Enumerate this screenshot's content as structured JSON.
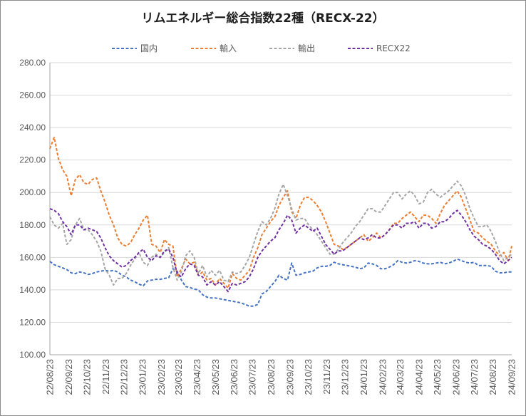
{
  "chart_data": {
    "type": "line",
    "title": "リムエネルギー総合指数22種（RECX-22）",
    "legend": "top",
    "grid": true,
    "ylim": [
      100,
      280
    ],
    "y_tick_labels": [
      "280.00",
      "260.00",
      "240.00",
      "220.00",
      "200.00",
      "180.00",
      "160.00",
      "140.00",
      "120.00",
      "100.00"
    ],
    "xlim": [
      "2022-08-23",
      "2024-09-23"
    ],
    "x_tick_labels": [
      "22/08/23",
      "22/09/23",
      "22/10/23",
      "22/11/23",
      "22/12/23",
      "23/01/23",
      "23/02/23",
      "23/03/23",
      "23/04/23",
      "23/05/23",
      "23/06/23",
      "23/07/23",
      "23/08/23",
      "23/09/23",
      "23/10/23",
      "23/11/23",
      "23/12/23",
      "24/01/23",
      "24/02/23",
      "24/03/23",
      "24/04/23",
      "24/05/23",
      "24/06/23",
      "24/07/23",
      "24/08/23",
      "24/09/23"
    ],
    "x": [
      "2022-08-23",
      "2022-08-30",
      "2022-09-06",
      "2022-09-13",
      "2022-09-20",
      "2022-09-27",
      "2022-10-04",
      "2022-10-11",
      "2022-10-18",
      "2022-10-25",
      "2022-11-01",
      "2022-11-08",
      "2022-11-15",
      "2022-11-22",
      "2022-11-29",
      "2022-12-06",
      "2022-12-13",
      "2022-12-20",
      "2022-12-27",
      "2023-01-03",
      "2023-01-10",
      "2023-01-17",
      "2023-01-24",
      "2023-01-31",
      "2023-02-07",
      "2023-02-14",
      "2023-02-21",
      "2023-02-28",
      "2023-03-07",
      "2023-03-14",
      "2023-03-21",
      "2023-03-28",
      "2023-04-04",
      "2023-04-11",
      "2023-04-18",
      "2023-04-25",
      "2023-05-02",
      "2023-05-09",
      "2023-05-16",
      "2023-05-23",
      "2023-05-30",
      "2023-06-06",
      "2023-06-13",
      "2023-06-20",
      "2023-06-27",
      "2023-07-04",
      "2023-07-11",
      "2023-07-18",
      "2023-07-25",
      "2023-08-01",
      "2023-08-08",
      "2023-08-15",
      "2023-08-22",
      "2023-08-29",
      "2023-09-05",
      "2023-09-12",
      "2023-09-19",
      "2023-09-26",
      "2023-10-03",
      "2023-10-10",
      "2023-10-17",
      "2023-10-24",
      "2023-10-31",
      "2023-11-07",
      "2023-11-14",
      "2023-11-21",
      "2023-11-28",
      "2023-12-05",
      "2023-12-12",
      "2023-12-19",
      "2023-12-26",
      "2024-01-02",
      "2024-01-09",
      "2024-01-16",
      "2024-01-23",
      "2024-01-30",
      "2024-02-06",
      "2024-02-13",
      "2024-02-20",
      "2024-02-27",
      "2024-03-05",
      "2024-03-12",
      "2024-03-19",
      "2024-03-26",
      "2024-04-02",
      "2024-04-09",
      "2024-04-16",
      "2024-04-23",
      "2024-04-30",
      "2024-05-07",
      "2024-05-14",
      "2024-05-21",
      "2024-05-28",
      "2024-06-04",
      "2024-06-11",
      "2024-06-18",
      "2024-06-25",
      "2024-07-02",
      "2024-07-09",
      "2024-07-16",
      "2024-07-23",
      "2024-07-30",
      "2024-08-06",
      "2024-08-13",
      "2024-08-20",
      "2024-08-27",
      "2024-09-03",
      "2024-09-10",
      "2024-09-17",
      "2024-09-23"
    ],
    "series": [
      {
        "name": "国内",
        "color": "#4472C4",
        "values": [
          157.5,
          155.5,
          154.5,
          153.5,
          152.5,
          150.5,
          150,
          151,
          150.5,
          149.5,
          150,
          151,
          151.5,
          152,
          151.5,
          152,
          151,
          149,
          148,
          146,
          145,
          143.5,
          142.5,
          145.5,
          146,
          146.5,
          146.5,
          147,
          147.5,
          153,
          151.5,
          146,
          142,
          141.5,
          140.5,
          140,
          137,
          135.5,
          135,
          135,
          134.5,
          134,
          133.5,
          133,
          132.5,
          132,
          131,
          130,
          130,
          131,
          137.5,
          139,
          142,
          145,
          149,
          147,
          146,
          156.5,
          149,
          149.5,
          150.5,
          151,
          151.5,
          153.5,
          154.5,
          154.5,
          155,
          157,
          156,
          155.5,
          155,
          154.5,
          154,
          153,
          153.5,
          156.5,
          156,
          155,
          153,
          153,
          154,
          155.5,
          158,
          157,
          156.5,
          157,
          158,
          157.5,
          156.5,
          156,
          156,
          156.5,
          157,
          156,
          156.5,
          157.5,
          159,
          158,
          157,
          156.5,
          157,
          155,
          155,
          155,
          154.5,
          151.5,
          150.5,
          150.5,
          151,
          151
        ]
      },
      {
        "name": "輸入",
        "color": "#ED7D31",
        "values": [
          227,
          234,
          221,
          214,
          210,
          198,
          208,
          211,
          206,
          205,
          208,
          209,
          201,
          194,
          186,
          180,
          172,
          168,
          167,
          169,
          174,
          178,
          183,
          186,
          168,
          167,
          163,
          171,
          168,
          167,
          148,
          153,
          159,
          156,
          157,
          149,
          151,
          146,
          147,
          143,
          147,
          144,
          141,
          150,
          147,
          146,
          149,
          152,
          160,
          166,
          174,
          178,
          182,
          185,
          192,
          197,
          201,
          188,
          184,
          192,
          197,
          197,
          195,
          192,
          188,
          182,
          175,
          168,
          167,
          165,
          166,
          168,
          170,
          172,
          174,
          170,
          172,
          175,
          172,
          174,
          177,
          181,
          181,
          184,
          186,
          188,
          185,
          182,
          186,
          186,
          184,
          181,
          187,
          192,
          195,
          198,
          201,
          197,
          190,
          183,
          176,
          175,
          172,
          170,
          168,
          164,
          161,
          163,
          158,
          167
        ]
      },
      {
        "name": "輸出",
        "color": "#A5A5A5",
        "values": [
          185,
          180,
          178,
          181,
          168,
          171,
          180,
          184,
          177,
          177,
          174,
          170,
          164,
          153,
          149,
          143,
          147,
          147,
          150,
          155,
          159,
          163,
          157,
          155,
          160,
          162,
          160,
          163,
          166,
          154,
          146,
          151,
          161,
          164,
          160,
          150,
          155,
          148,
          152,
          149,
          152,
          146,
          145,
          151,
          150,
          151,
          155,
          160,
          168,
          176,
          182,
          180,
          184,
          190,
          199,
          205,
          198,
          190,
          183,
          184,
          184,
          180,
          177,
          174,
          170,
          166,
          162,
          162,
          165,
          169,
          172,
          175,
          179,
          182,
          186,
          190,
          190,
          188,
          188,
          192,
          196,
          200,
          200,
          196,
          199,
          201,
          198,
          193,
          194,
          200,
          202,
          199,
          197,
          199,
          201,
          204,
          207,
          204,
          198,
          190,
          184,
          179,
          179,
          180,
          176,
          170,
          163,
          158,
          160,
          162
        ]
      },
      {
        "name": "RECX22",
        "color": "#7030A0",
        "values": [
          190,
          189,
          187,
          182,
          179,
          174,
          180,
          180,
          177,
          178,
          177,
          176,
          172,
          166,
          161,
          158,
          156,
          154,
          155,
          158,
          160,
          163,
          165,
          160,
          158,
          161,
          160,
          164,
          165,
          160,
          150,
          148,
          153,
          156,
          155,
          149,
          148,
          143,
          145,
          143,
          145,
          142,
          139,
          144,
          143,
          144,
          145,
          148,
          153,
          160,
          164,
          167,
          170,
          172,
          177,
          181,
          186,
          183,
          175,
          178,
          180,
          178,
          176,
          178,
          173,
          168,
          165,
          162,
          164,
          164,
          166,
          168,
          170,
          172,
          171,
          172,
          174,
          172,
          172,
          174,
          177,
          180,
          180,
          178,
          181,
          181,
          182,
          178,
          181,
          181,
          178,
          179,
          182,
          182,
          184,
          187,
          189,
          186,
          182,
          177,
          173,
          171,
          168,
          167,
          165,
          162,
          158,
          156,
          158,
          160
        ]
      }
    ]
  }
}
